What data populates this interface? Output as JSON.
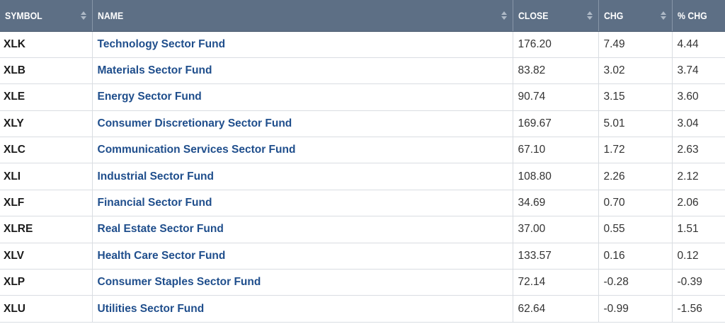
{
  "table": {
    "columns": [
      {
        "key": "symbol",
        "label": "SYMBOL"
      },
      {
        "key": "name",
        "label": "NAME"
      },
      {
        "key": "close",
        "label": "CLOSE"
      },
      {
        "key": "chg",
        "label": "CHG"
      },
      {
        "key": "pct_chg",
        "label": "% CHG"
      }
    ],
    "rows": [
      {
        "symbol": "XLK",
        "name": "Technology Sector Fund",
        "close": "176.20",
        "chg": "7.49",
        "pct_chg": "4.44"
      },
      {
        "symbol": "XLB",
        "name": "Materials Sector Fund",
        "close": "83.82",
        "chg": "3.02",
        "pct_chg": "3.74"
      },
      {
        "symbol": "XLE",
        "name": "Energy Sector Fund",
        "close": "90.74",
        "chg": "3.15",
        "pct_chg": "3.60"
      },
      {
        "symbol": "XLY",
        "name": "Consumer Discretionary Sector Fund",
        "close": "169.67",
        "chg": "5.01",
        "pct_chg": "3.04"
      },
      {
        "symbol": "XLC",
        "name": "Communication Services Sector Fund",
        "close": "67.10",
        "chg": "1.72",
        "pct_chg": "2.63"
      },
      {
        "symbol": "XLI",
        "name": "Industrial Sector Fund",
        "close": "108.80",
        "chg": "2.26",
        "pct_chg": "2.12"
      },
      {
        "symbol": "XLF",
        "name": "Financial Sector Fund",
        "close": "34.69",
        "chg": "0.70",
        "pct_chg": "2.06"
      },
      {
        "symbol": "XLRE",
        "name": "Real Estate Sector Fund",
        "close": "37.00",
        "chg": "0.55",
        "pct_chg": "1.51"
      },
      {
        "symbol": "XLV",
        "name": "Health Care Sector Fund",
        "close": "133.57",
        "chg": "0.16",
        "pct_chg": "0.12"
      },
      {
        "symbol": "XLP",
        "name": "Consumer Staples Sector Fund",
        "close": "72.14",
        "chg": "-0.28",
        "pct_chg": "-0.39"
      },
      {
        "symbol": "XLU",
        "name": "Utilities Sector Fund",
        "close": "62.64",
        "chg": "-0.99",
        "pct_chg": "-1.56"
      }
    ]
  },
  "icons": {
    "sort": "sort-arrows-icon"
  },
  "colors": {
    "header_bg": "#5d6f85",
    "header_text": "#ffffff",
    "link": "#1f4e8c",
    "grid": "#d9dde2"
  }
}
